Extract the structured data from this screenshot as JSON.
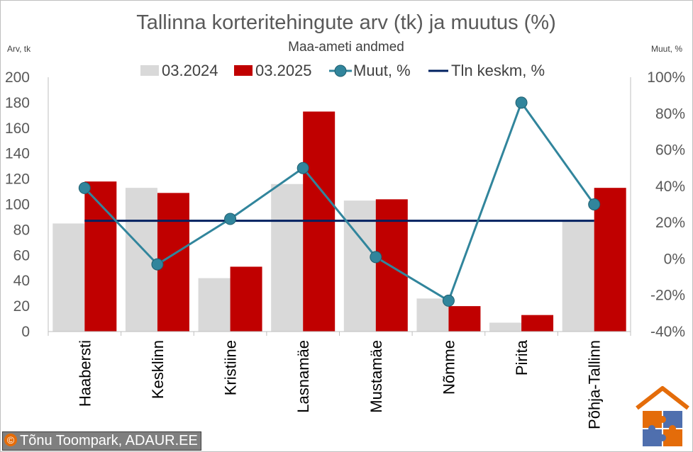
{
  "chart_data": {
    "type": "bar",
    "title": "Tallinna korteritehingute arv (tk) ja muutus (%)",
    "subtitle": "Maa-ameti andmed",
    "ylabel": "Arv, tk",
    "y2label": "Muut, %",
    "ylim": [
      0,
      200
    ],
    "yticks": [
      0,
      20,
      40,
      60,
      80,
      100,
      120,
      140,
      160,
      180,
      200
    ],
    "y2lim": [
      -40,
      100
    ],
    "y2ticks": [
      -40,
      -20,
      0,
      20,
      40,
      60,
      80,
      100
    ],
    "y2tick_labels": [
      "-40%",
      "-20%",
      "0%",
      "20%",
      "40%",
      "60%",
      "80%",
      "100%"
    ],
    "categories": [
      "Haabersti",
      "Kesklinn",
      "Kristiine",
      "Lasnamäe",
      "Mustamäe",
      "Nõmme",
      "Pirita",
      "Põhja-Tallinn"
    ],
    "series": [
      {
        "name": "03.2024",
        "type": "bar",
        "axis": "left",
        "color": "#d9d9d9",
        "values": [
          85,
          113,
          42,
          116,
          103,
          26,
          7,
          87
        ]
      },
      {
        "name": "03.2025",
        "type": "bar",
        "axis": "left",
        "color": "#c00000",
        "values": [
          118,
          109,
          51,
          173,
          104,
          20,
          13,
          113
        ]
      },
      {
        "name": "Muut, %",
        "type": "line",
        "axis": "right",
        "color": "#31859c",
        "values": [
          39,
          -3,
          22,
          50,
          1,
          -23,
          86,
          30
        ]
      },
      {
        "name": "Tln keskm, %",
        "type": "line",
        "axis": "right",
        "color": "#002060",
        "values": [
          21,
          21,
          21,
          21,
          21,
          21,
          21,
          21
        ]
      }
    ],
    "legend": "top-center",
    "grid": false
  },
  "credit": {
    "symbol": "©",
    "text": "Tõnu Toompark, ADAUR.EE"
  },
  "logo": {
    "colors": [
      "#e46c0a",
      "#4f6fae",
      "#e46c0a",
      "#7f7f7f"
    ]
  }
}
